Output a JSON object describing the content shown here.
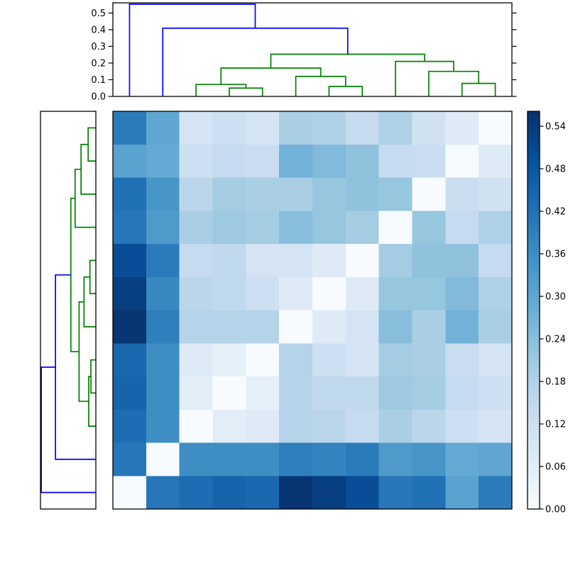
{
  "chart_data": {
    "type": "heatmap",
    "plot_kind": "clustermap-with-dendrograms",
    "title": "",
    "grid": false,
    "n_rows": 12,
    "n_cols": 12,
    "vmin": 0.0,
    "vmax": 0.561,
    "matrix_rows_top_to_bottom": [
      [
        0.4,
        0.3,
        0.1,
        0.12,
        0.1,
        0.19,
        0.18,
        0.14,
        0.18,
        0.11,
        0.07,
        0.0
      ],
      [
        0.31,
        0.29,
        0.12,
        0.14,
        0.13,
        0.27,
        0.25,
        0.23,
        0.14,
        0.13,
        0.0,
        0.07
      ],
      [
        0.42,
        0.34,
        0.16,
        0.2,
        0.19,
        0.19,
        0.22,
        0.23,
        0.22,
        0.0,
        0.13,
        0.11
      ],
      [
        0.41,
        0.33,
        0.19,
        0.21,
        0.2,
        0.24,
        0.22,
        0.2,
        0.0,
        0.22,
        0.14,
        0.18
      ],
      [
        0.5,
        0.4,
        0.14,
        0.15,
        0.1,
        0.1,
        0.07,
        0.0,
        0.2,
        0.23,
        0.23,
        0.14
      ],
      [
        0.53,
        0.37,
        0.16,
        0.15,
        0.12,
        0.07,
        0.0,
        0.07,
        0.22,
        0.22,
        0.25,
        0.18
      ],
      [
        0.55,
        0.39,
        0.17,
        0.17,
        0.17,
        0.0,
        0.07,
        0.1,
        0.24,
        0.19,
        0.27,
        0.19
      ],
      [
        0.44,
        0.36,
        0.07,
        0.05,
        0.0,
        0.17,
        0.12,
        0.1,
        0.2,
        0.19,
        0.13,
        0.1
      ],
      [
        0.45,
        0.36,
        0.06,
        0.0,
        0.05,
        0.17,
        0.15,
        0.15,
        0.21,
        0.2,
        0.14,
        0.12
      ],
      [
        0.43,
        0.36,
        0.0,
        0.06,
        0.07,
        0.17,
        0.16,
        0.14,
        0.19,
        0.16,
        0.12,
        0.1
      ],
      [
        0.41,
        0.0,
        0.36,
        0.36,
        0.36,
        0.39,
        0.38,
        0.4,
        0.33,
        0.34,
        0.29,
        0.3
      ],
      [
        0.0,
        0.41,
        0.43,
        0.45,
        0.44,
        0.55,
        0.53,
        0.5,
        0.41,
        0.42,
        0.31,
        0.4
      ]
    ],
    "colormap": {
      "name": "Blues",
      "anchors": [
        [
          0.0,
          [
            247,
            251,
            255
          ]
        ],
        [
          0.125,
          [
            222,
            235,
            247
          ]
        ],
        [
          0.25,
          [
            198,
            219,
            239
          ]
        ],
        [
          0.375,
          [
            158,
            202,
            225
          ]
        ],
        [
          0.5,
          [
            107,
            174,
            214
          ]
        ],
        [
          0.625,
          [
            66,
            146,
            198
          ]
        ],
        [
          0.75,
          [
            33,
            113,
            181
          ]
        ],
        [
          0.875,
          [
            8,
            81,
            156
          ]
        ],
        [
          1.0,
          [
            8,
            48,
            107
          ]
        ]
      ]
    },
    "colorbar": {
      "position": "right",
      "tick_values": [
        0.0,
        0.06,
        0.12,
        0.18,
        0.24,
        0.3,
        0.36,
        0.42,
        0.48,
        0.54
      ],
      "tick_labels": [
        "0.00",
        "0.06",
        "0.12",
        "0.18",
        "0.24",
        "0.30",
        "0.36",
        "0.42",
        "0.48",
        "0.54"
      ]
    },
    "dendrogram_axis": {
      "max": 0.561,
      "tick_values": [
        0.0,
        0.1,
        0.2,
        0.3,
        0.4,
        0.5
      ],
      "tick_labels": [
        "0.0",
        "0.1",
        "0.2",
        "0.3",
        "0.4",
        "0.5"
      ]
    },
    "link_colors": {
      "above_threshold": "#0000ff",
      "below_threshold": "#008000",
      "threshold": 0.39
    },
    "column_dendrogram": {
      "h": 0.553,
      "c": [
        0,
        {
          "h": 0.409,
          "c": [
            1,
            {
              "h": 0.253,
              "c": [
                {
                  "h": 0.17,
                  "c": [
                    {
                      "h": 0.072,
                      "c": [
                        2,
                        {
                          "h": 0.05,
                          "c": [
                            3,
                            4
                          ]
                        }
                      ]
                    },
                    {
                      "h": 0.12,
                      "c": [
                        5,
                        {
                          "h": 0.06,
                          "c": [
                            6,
                            7
                          ]
                        }
                      ]
                    }
                  ]
                },
                {
                  "h": 0.21,
                  "c": [
                    8,
                    {
                      "h": 0.15,
                      "c": [
                        9,
                        {
                          "h": 0.078,
                          "c": [
                            10,
                            11
                          ]
                        }
                      ]
                    }
                  ]
                }
              ]
            }
          ]
        }
      ]
    },
    "row_dendrogram": {
      "h": 0.553,
      "c": [
        {
          "h": 0.409,
          "c": [
            {
              "h": 0.253,
              "c": [
                {
                  "h": 0.21,
                  "c": [
                    {
                      "h": 0.15,
                      "c": [
                        {
                          "h": 0.078,
                          "c": [
                            0,
                            1
                          ]
                        },
                        2
                      ]
                    },
                    3
                  ]
                },
                {
                  "h": 0.17,
                  "c": [
                    {
                      "h": 0.12,
                      "c": [
                        {
                          "h": 0.06,
                          "c": [
                            4,
                            5
                          ]
                        },
                        6
                      ]
                    },
                    {
                      "h": 0.072,
                      "c": [
                        {
                          "h": 0.05,
                          "c": [
                            7,
                            8
                          ]
                        },
                        9
                      ]
                    }
                  ]
                }
              ]
            },
            10
          ]
        },
        11
      ]
    }
  }
}
